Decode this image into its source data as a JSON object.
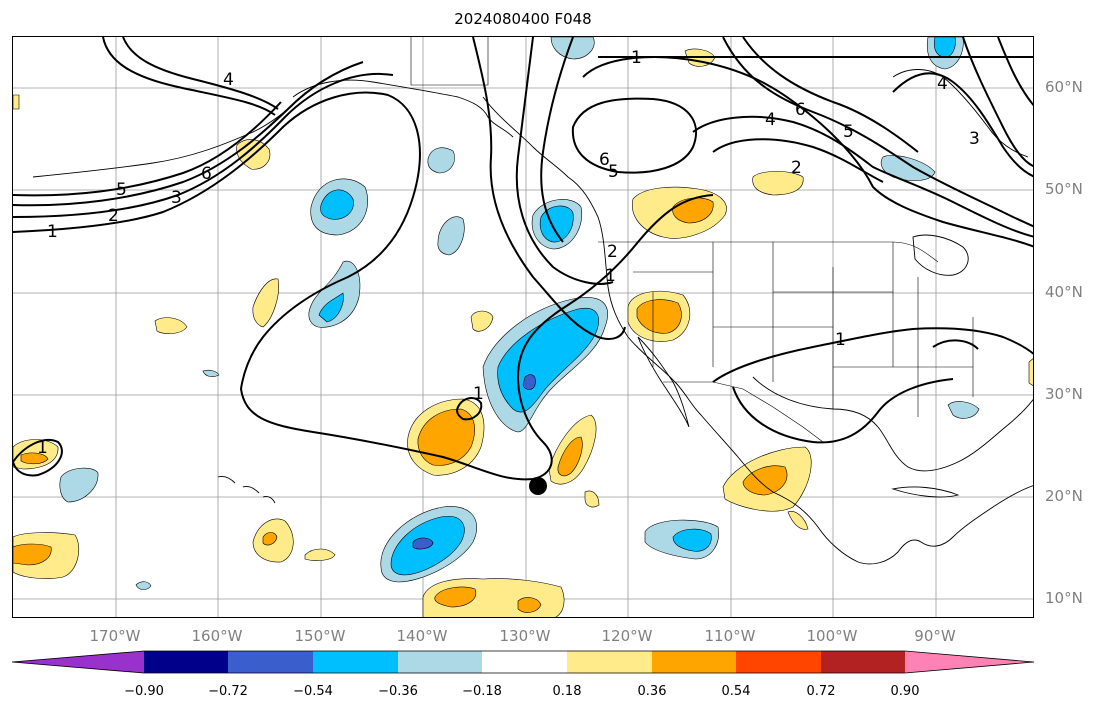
{
  "title": "2024080400 F048",
  "lat_labels": [
    "60°N",
    "50°N",
    "40°N",
    "30°N",
    "20°N",
    "10°N"
  ],
  "lon_labels": [
    "170°W",
    "160°W",
    "150°W",
    "140°W",
    "130°W",
    "120°W",
    "110°W",
    "100°W",
    "90°W"
  ],
  "contour_labels": [
    "1",
    "2",
    "3",
    "4",
    "5",
    "6",
    "1",
    "2",
    "3",
    "4",
    "5",
    "6",
    "1",
    "2",
    "4",
    "5",
    "6",
    "1",
    "1",
    "1"
  ],
  "colorbar": {
    "tick_labels": [
      "−0.90",
      "−0.72",
      "−0.54",
      "−0.36",
      "−0.18",
      "0.18",
      "0.36",
      "0.54",
      "0.72",
      "0.90"
    ],
    "colors": [
      "#9932cc",
      "#00008b",
      "#3a5fcd",
      "#00bfff",
      "#add8e6",
      "#ffffff",
      "#ffeb8a",
      "#ffa500",
      "#ff4500",
      "#b22222",
      "#ff82b4"
    ]
  },
  "marker": "black-dot"
}
